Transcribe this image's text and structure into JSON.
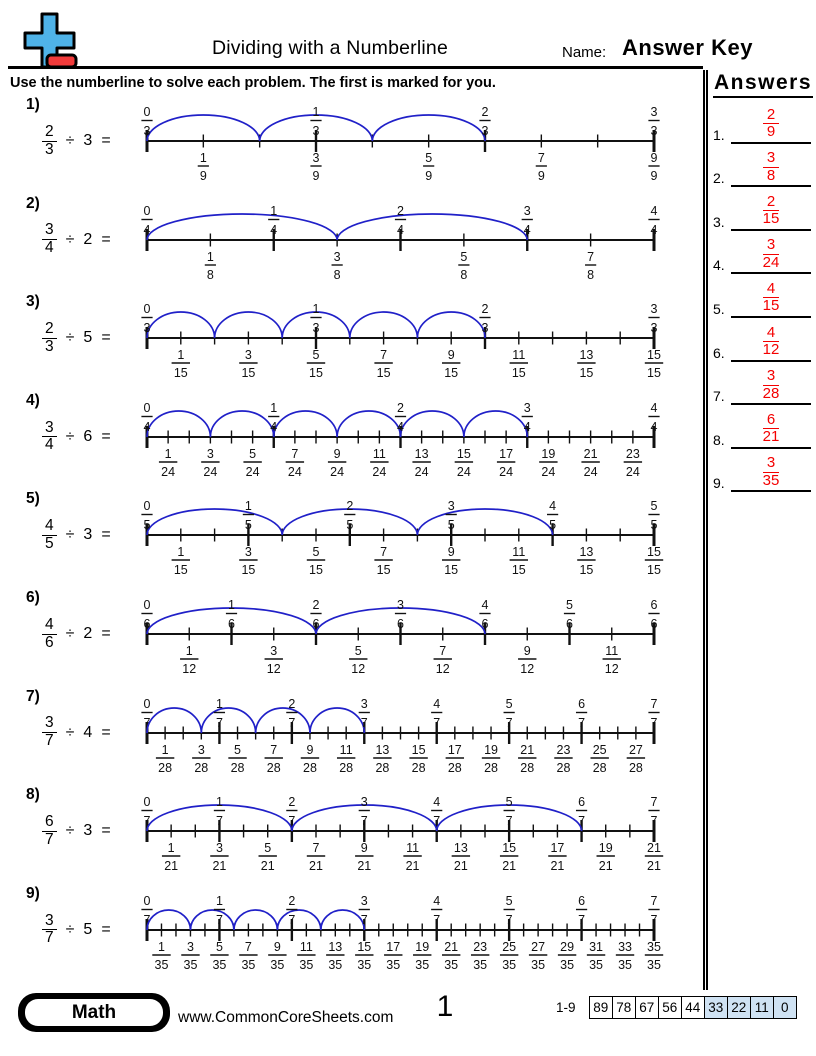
{
  "header": {
    "title": "Dividing with a Numberline",
    "name_label": "Name:",
    "name_value": "Answer Key",
    "instructions": "Use the numberline to solve each problem. The first is marked for you."
  },
  "answers": {
    "title": "Answers",
    "items": [
      {
        "label": "1.",
        "num": "2",
        "den": "9"
      },
      {
        "label": "2.",
        "num": "3",
        "den": "8"
      },
      {
        "label": "3.",
        "num": "2",
        "den": "15"
      },
      {
        "label": "4.",
        "num": "3",
        "den": "24"
      },
      {
        "label": "5.",
        "num": "4",
        "den": "15"
      },
      {
        "label": "6.",
        "num": "4",
        "den": "12"
      },
      {
        "label": "7.",
        "num": "3",
        "den": "28"
      },
      {
        "label": "8.",
        "num": "6",
        "den": "21"
      },
      {
        "label": "9.",
        "num": "3",
        "den": "35"
      }
    ]
  },
  "problems": [
    {
      "label": "1)",
      "num": "2",
      "den": "3",
      "op": "÷",
      "divisor": "3",
      "eq": "=",
      "line": {
        "subdivisions": 9,
        "major_every": 3,
        "jumps": 3,
        "jump_size": 2,
        "top_labels": [
          "0/3",
          "1/3",
          "2/3",
          "3/3"
        ],
        "bottom_labels": [
          "1/9",
          "3/9",
          "5/9",
          "7/9",
          "9/9"
        ]
      }
    },
    {
      "label": "2)",
      "num": "3",
      "den": "4",
      "op": "÷",
      "divisor": "2",
      "eq": "=",
      "line": {
        "subdivisions": 8,
        "major_every": 2,
        "jumps": 2,
        "jump_size": 3,
        "top_labels": [
          "0/4",
          "1/4",
          "2/4",
          "3/4",
          "4/4"
        ],
        "bottom_labels": [
          "1/8",
          "3/8",
          "5/8",
          "7/8"
        ]
      }
    },
    {
      "label": "3)",
      "num": "2",
      "den": "3",
      "op": "÷",
      "divisor": "5",
      "eq": "=",
      "line": {
        "subdivisions": 15,
        "major_every": 5,
        "jumps": 5,
        "jump_size": 2,
        "top_labels": [
          "0/3",
          "1/3",
          "2/3",
          "3/3"
        ],
        "bottom_labels": [
          "1/15",
          "3/15",
          "5/15",
          "7/15",
          "9/15",
          "11/15",
          "13/15",
          "15/15"
        ]
      }
    },
    {
      "label": "4)",
      "num": "3",
      "den": "4",
      "op": "÷",
      "divisor": "6",
      "eq": "=",
      "line": {
        "subdivisions": 24,
        "major_every": 6,
        "jumps": 6,
        "jump_size": 3,
        "top_labels": [
          "0/4",
          "1/4",
          "2/4",
          "3/4",
          "4/4"
        ],
        "bottom_labels": [
          "1/24",
          "3/24",
          "5/24",
          "7/24",
          "9/24",
          "11/24",
          "13/24",
          "15/24",
          "17/24",
          "19/24",
          "21/24",
          "23/24"
        ]
      }
    },
    {
      "label": "5)",
      "num": "4",
      "den": "5",
      "op": "÷",
      "divisor": "3",
      "eq": "=",
      "line": {
        "subdivisions": 15,
        "major_every": 3,
        "jumps": 3,
        "jump_size": 4,
        "top_labels": [
          "0/5",
          "1/5",
          "2/5",
          "3/5",
          "4/5",
          "5/5"
        ],
        "bottom_labels": [
          "1/15",
          "3/15",
          "5/15",
          "7/15",
          "9/15",
          "11/15",
          "13/15",
          "15/15"
        ]
      }
    },
    {
      "label": "6)",
      "num": "4",
      "den": "6",
      "op": "÷",
      "divisor": "2",
      "eq": "=",
      "line": {
        "subdivisions": 12,
        "major_every": 2,
        "jumps": 2,
        "jump_size": 4,
        "top_labels": [
          "0/6",
          "1/6",
          "2/6",
          "3/6",
          "4/6",
          "5/6",
          "6/6"
        ],
        "bottom_labels": [
          "1/12",
          "3/12",
          "5/12",
          "7/12",
          "9/12",
          "11/12"
        ]
      }
    },
    {
      "label": "7)",
      "num": "3",
      "den": "7",
      "op": "÷",
      "divisor": "4",
      "eq": "=",
      "line": {
        "subdivisions": 28,
        "major_every": 4,
        "jumps": 4,
        "jump_size": 3,
        "top_labels": [
          "0/7",
          "1/7",
          "2/7",
          "3/7",
          "4/7",
          "5/7",
          "6/7",
          "7/7"
        ],
        "bottom_labels": [
          "1/28",
          "3/28",
          "5/28",
          "7/28",
          "9/28",
          "11/28",
          "13/28",
          "15/28",
          "17/28",
          "19/28",
          "21/28",
          "23/28",
          "25/28",
          "27/28"
        ]
      }
    },
    {
      "label": "8)",
      "num": "6",
      "den": "7",
      "op": "÷",
      "divisor": "3",
      "eq": "=",
      "line": {
        "subdivisions": 21,
        "major_every": 3,
        "jumps": 3,
        "jump_size": 6,
        "top_labels": [
          "0/7",
          "1/7",
          "2/7",
          "3/7",
          "4/7",
          "5/7",
          "6/7",
          "7/7"
        ],
        "bottom_labels": [
          "1/21",
          "3/21",
          "5/21",
          "7/21",
          "9/21",
          "11/21",
          "13/21",
          "15/21",
          "17/21",
          "19/21",
          "21/21"
        ]
      }
    },
    {
      "label": "9)",
      "num": "3",
      "den": "7",
      "op": "÷",
      "divisor": "5",
      "eq": "=",
      "line": {
        "subdivisions": 35,
        "major_every": 5,
        "jumps": 5,
        "jump_size": 3,
        "top_labels": [
          "0/7",
          "1/7",
          "2/7",
          "3/7",
          "4/7",
          "5/7",
          "6/7",
          "7/7"
        ],
        "bottom_labels": [
          "1/35",
          "3/35",
          "5/35",
          "7/35",
          "9/35",
          "11/35",
          "13/35",
          "15/35",
          "17/35",
          "19/35",
          "21/35",
          "23/35",
          "25/35",
          "27/35",
          "29/35",
          "31/35",
          "33/35",
          "35/35"
        ]
      }
    }
  ],
  "footer": {
    "badge": "Math",
    "website": "www.CommonCoreSheets.com",
    "page_number": "1",
    "score_range": "1-9",
    "score_boxes": [
      "89",
      "78",
      "67",
      "56",
      "44",
      "33",
      "22",
      "11",
      "0"
    ],
    "score_highlight_from": 5
  },
  "colors": {
    "arc_blue": "#2020c8",
    "answer_red": "#f40000",
    "score_highlight": "#cfe2f3",
    "logo_blue": "#4fb3e8",
    "logo_red": "#f23b3b",
    "line_black": "#111111"
  }
}
